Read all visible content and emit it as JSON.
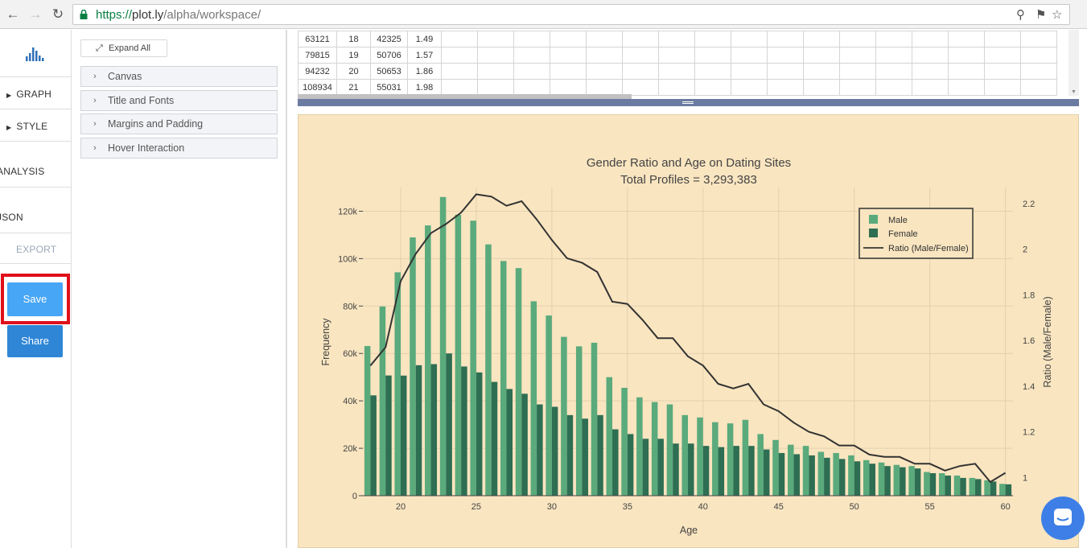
{
  "browser": {
    "url_protocol": "https://",
    "url_host": "plot.ly",
    "url_path": "/alpha/workspace/"
  },
  "leftnav": {
    "items": [
      {
        "label": "GRAPH"
      },
      {
        "label": "STYLE"
      },
      {
        "label": "ANALYSIS"
      },
      {
        "label": "JSON"
      },
      {
        "label": "EXPORT"
      }
    ],
    "save_label": "Save",
    "share_label": "Share"
  },
  "panel": {
    "expand_label": "Expand All",
    "sections": [
      "Canvas",
      "Title and Fonts",
      "Margins and Padding",
      "Hover Interaction"
    ]
  },
  "grid": {
    "rows": [
      [
        "63121",
        "18",
        "42325",
        "1.49"
      ],
      [
        "79815",
        "19",
        "50706",
        "1.57"
      ],
      [
        "94232",
        "20",
        "50653",
        "1.86"
      ],
      [
        "108934",
        "21",
        "55031",
        "1.98"
      ]
    ]
  },
  "colors": {
    "male": "#5aaa7c",
    "female": "#2e6e53",
    "line": "#333333",
    "chart_bg": "#f9e5c0",
    "save_highlight": "#e0101a"
  },
  "chart_data": {
    "type": "bar",
    "title": "Gender Ratio and Age on Dating Sites",
    "subtitle": "Total Profiles = 3,293,383",
    "xlabel": "Age",
    "ylabel": "Frequency",
    "y2label": "Ratio (Male/Female)",
    "xlim": [
      17.5,
      60.5
    ],
    "ylim": [
      0,
      130000
    ],
    "y2lim": [
      0.92,
      2.27
    ],
    "x_ticks": [
      "20",
      "25",
      "30",
      "35",
      "40",
      "45",
      "50",
      "55",
      "60"
    ],
    "y_ticks": [
      "0",
      "20k",
      "40k",
      "60k",
      "80k",
      "100k",
      "120k"
    ],
    "y2_ticks": [
      "1",
      "1.2",
      "1.4",
      "1.6",
      "1.8",
      "2",
      "2.2"
    ],
    "legend": {
      "position": "top-right",
      "male": "Male",
      "female": "Female",
      "ratio": "Ratio (Male/Female)"
    },
    "x": [
      18,
      19,
      20,
      21,
      22,
      23,
      24,
      25,
      26,
      27,
      28,
      29,
      30,
      31,
      32,
      33,
      34,
      35,
      36,
      37,
      38,
      39,
      40,
      41,
      42,
      43,
      44,
      45,
      46,
      47,
      48,
      49,
      50,
      51,
      52,
      53,
      54,
      55,
      56,
      57,
      58,
      59,
      60
    ],
    "series": [
      {
        "name": "Male",
        "values": [
          63121,
          79815,
          94232,
          108934,
          114000,
          126000,
          118500,
          116000,
          106000,
          99000,
          96000,
          82000,
          76000,
          67000,
          63000,
          64500,
          50000,
          45500,
          41500,
          39500,
          38500,
          34000,
          33000,
          31000,
          30500,
          32000,
          26000,
          23500,
          21500,
          21000,
          18500,
          18000,
          17000,
          15000,
          14000,
          13000,
          12500,
          10000,
          9500,
          8500,
          7500,
          6500,
          5000
        ]
      },
      {
        "name": "Female",
        "values": [
          42325,
          50706,
          50653,
          55031,
          55500,
          60000,
          54500,
          52000,
          48000,
          45000,
          43000,
          38500,
          37500,
          34000,
          32500,
          34000,
          28000,
          26000,
          24000,
          24000,
          22000,
          22000,
          21000,
          20500,
          21000,
          21000,
          19500,
          18000,
          17500,
          17000,
          16000,
          15500,
          14500,
          13500,
          12500,
          12000,
          11500,
          9500,
          8500,
          7500,
          7000,
          6000,
          4800
        ]
      },
      {
        "name": "Ratio (Male/Female)",
        "values": [
          1.49,
          1.57,
          1.86,
          1.98,
          2.07,
          2.11,
          2.16,
          2.24,
          2.23,
          2.19,
          2.21,
          2.13,
          2.04,
          1.96,
          1.94,
          1.9,
          1.77,
          1.76,
          1.69,
          1.61,
          1.61,
          1.53,
          1.49,
          1.41,
          1.39,
          1.41,
          1.32,
          1.29,
          1.24,
          1.2,
          1.18,
          1.14,
          1.14,
          1.1,
          1.09,
          1.09,
          1.06,
          1.06,
          1.03,
          1.05,
          1.06,
          0.98,
          1.02
        ]
      }
    ]
  }
}
